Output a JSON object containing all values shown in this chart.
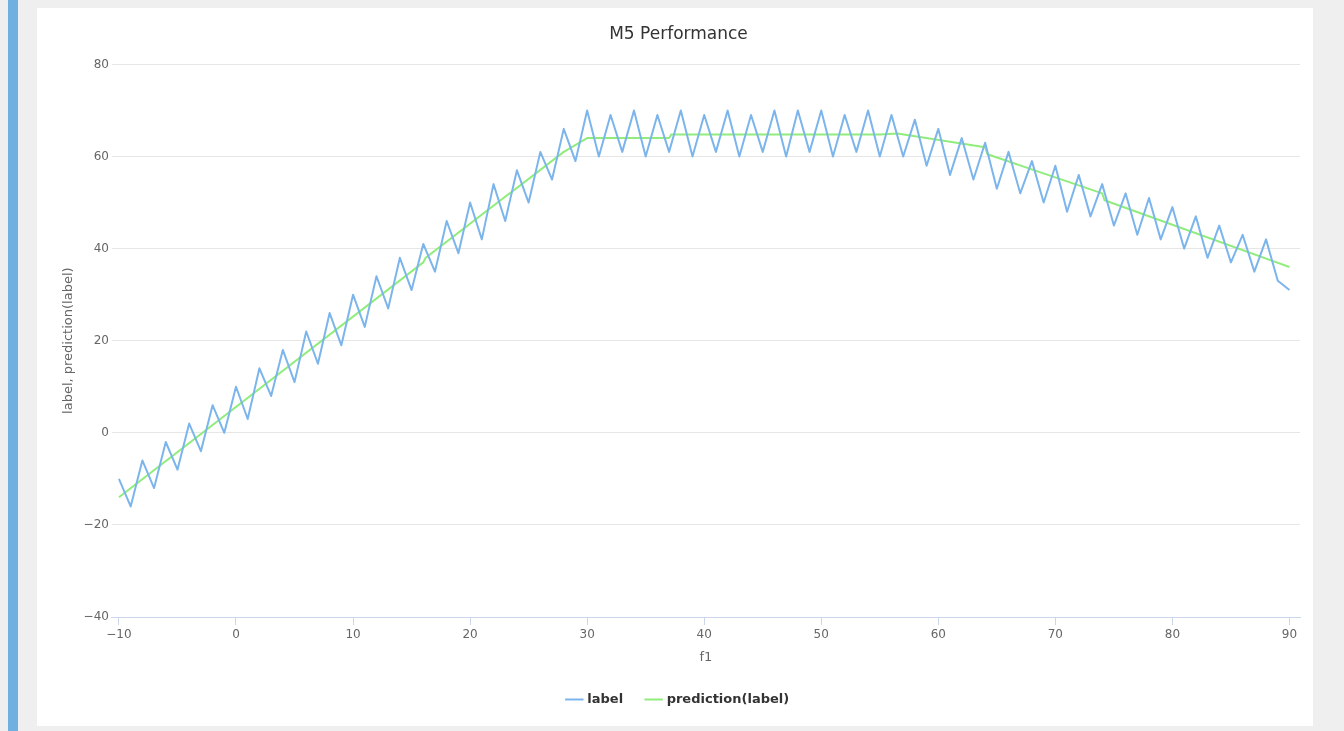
{
  "chart_data": {
    "type": "line",
    "title": "M5 Performance",
    "xlabel": "f1",
    "ylabel": "label, prediction(label)",
    "xlim": [
      -10.6,
      90.9
    ],
    "xticks": [
      {
        "value": -10,
        "label": "−10"
      },
      0,
      10,
      20,
      30,
      40,
      50,
      60,
      70,
      80,
      90
    ],
    "ylim": [
      -40,
      80
    ],
    "yticks": [
      {
        "value": -40,
        "label": "−40"
      },
      {
        "value": -20,
        "label": "−20"
      },
      0,
      20,
      40,
      60,
      80
    ],
    "grid": "y",
    "legend": "bottom",
    "marker": "none",
    "line_style": "solid",
    "series": [
      {
        "name": "label",
        "color": "#7cb5ec",
        "x": [
          -10,
          -9,
          -8,
          -7,
          -6,
          -5,
          -4,
          -3,
          -2,
          -1,
          0,
          1,
          2,
          3,
          4,
          5,
          6,
          7,
          8,
          9,
          10,
          11,
          12,
          13,
          14,
          15,
          16,
          17,
          18,
          19,
          20,
          21,
          22,
          23,
          24,
          25,
          26,
          27,
          28,
          29,
          30,
          31,
          32,
          33,
          34,
          35,
          36,
          37,
          38,
          39,
          40,
          41,
          42,
          43,
          44,
          45,
          46,
          47,
          48,
          49,
          50,
          51,
          52,
          53,
          54,
          55,
          56,
          57,
          58,
          59,
          60,
          61,
          62,
          63,
          64,
          65,
          66,
          67,
          68,
          69,
          70,
          71,
          72,
          73,
          74,
          75,
          76,
          77,
          78,
          79,
          80,
          81,
          82,
          83,
          84,
          85,
          86,
          87,
          88,
          89,
          90
        ],
        "values": [
          -10,
          -16,
          -6,
          -12,
          -2,
          -8,
          2,
          -4,
          6,
          0,
          10,
          3,
          14,
          8,
          18,
          11,
          22,
          15,
          26,
          19,
          30,
          23,
          34,
          27,
          38,
          31,
          41,
          35,
          46,
          39,
          50,
          42,
          54,
          46,
          57,
          50,
          61,
          55,
          66,
          59,
          70,
          60,
          69,
          61,
          70,
          60,
          69,
          61,
          70,
          60,
          69,
          61,
          70,
          60,
          69,
          61,
          70,
          60,
          70,
          61,
          70,
          60,
          69,
          61,
          70,
          60,
          69,
          60,
          68,
          58,
          66,
          56,
          64,
          55,
          63,
          53,
          61,
          52,
          59,
          50,
          58,
          48,
          56,
          47,
          54,
          45,
          52,
          43,
          51,
          42,
          49,
          40,
          47,
          38,
          45,
          37,
          43,
          35,
          42,
          33,
          31
        ]
      },
      {
        "name": "prediction(label)",
        "color": "#90ed7d",
        "x": [
          -10,
          16,
          16.2,
          28,
          30,
          37,
          37.2,
          55,
          56.5,
          64,
          64.2,
          74,
          74.2,
          90
        ],
        "values": [
          -14,
          37,
          38,
          61,
          64,
          64,
          64.8,
          64.8,
          65,
          62,
          60.5,
          52,
          50.5,
          36
        ]
      }
    ]
  }
}
